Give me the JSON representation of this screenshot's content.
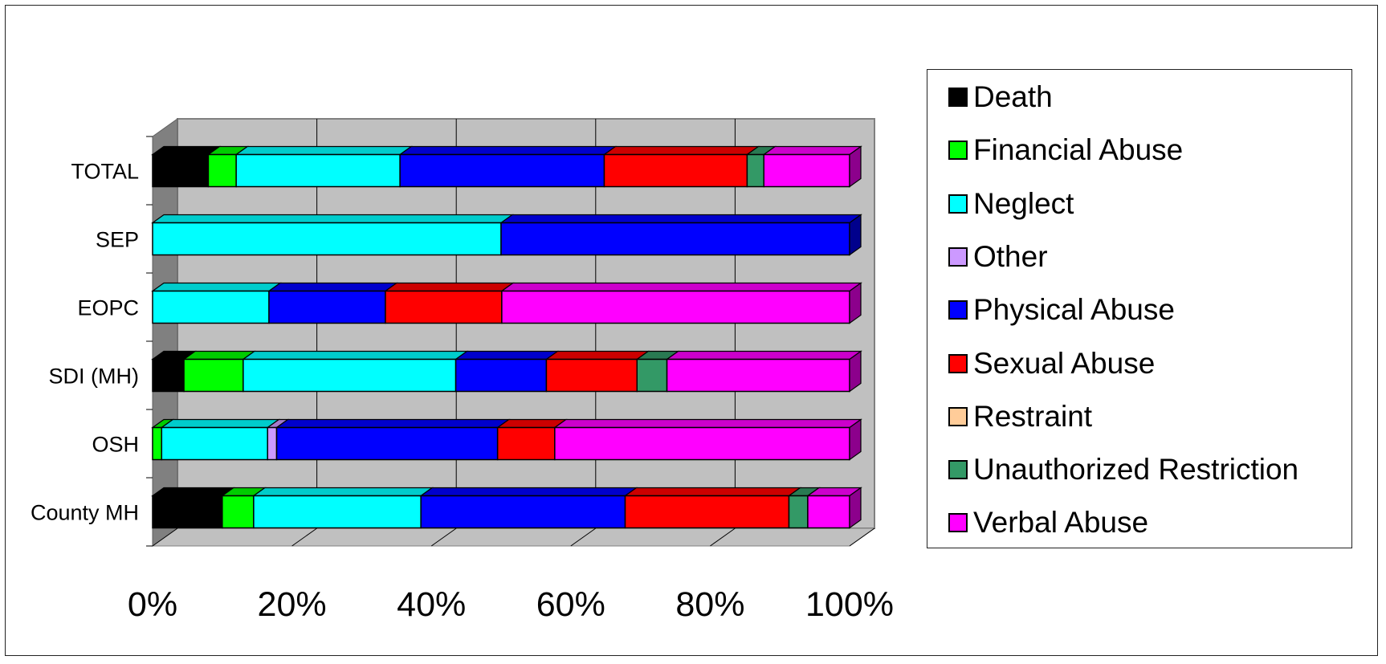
{
  "chart_data": {
    "type": "bar",
    "orientation": "horizontal",
    "stacked": "percent",
    "style": "3d",
    "categories": [
      "TOTAL",
      "SEP",
      "EOPC",
      "SDI (MH)",
      "OSH",
      "County MH"
    ],
    "x_ticks": [
      "0%",
      "20%",
      "40%",
      "60%",
      "80%",
      "100%"
    ],
    "xlim": [
      0,
      100
    ],
    "grid": true,
    "legend_position": "right",
    "series": [
      {
        "name": "Death",
        "color": "#000000",
        "values": [
          8,
          0,
          0,
          4.5,
          0,
          10
        ]
      },
      {
        "name": "Financial Abuse",
        "color": "#00ff00",
        "values": [
          4,
          0,
          0,
          8.5,
          1.3,
          4.5
        ]
      },
      {
        "name": "Neglect",
        "color": "#00ffff",
        "values": [
          23.5,
          50,
          16.7,
          30.5,
          15.2,
          24
        ]
      },
      {
        "name": "Other",
        "color": "#cc99ff",
        "values": [
          0,
          0,
          0,
          0,
          1.3,
          0
        ]
      },
      {
        "name": "Physical Abuse",
        "color": "#0000ff",
        "values": [
          29.3,
          50,
          16.7,
          13,
          31.7,
          29.3
        ]
      },
      {
        "name": "Sexual Abuse",
        "color": "#ff0000",
        "values": [
          20.5,
          0,
          16.7,
          13,
          8.2,
          23.5
        ]
      },
      {
        "name": "Restraint",
        "color": "#ffcc99",
        "values": [
          0,
          0,
          0,
          0,
          0,
          0
        ]
      },
      {
        "name": "Unauthorized Restriction",
        "color": "#339966",
        "values": [
          2.4,
          0,
          0,
          4.3,
          0,
          2.7
        ]
      },
      {
        "name": "Verbal Abuse",
        "color": "#ff00ff",
        "values": [
          12.3,
          0,
          49.9,
          26.2,
          42.3,
          6
        ]
      }
    ]
  }
}
